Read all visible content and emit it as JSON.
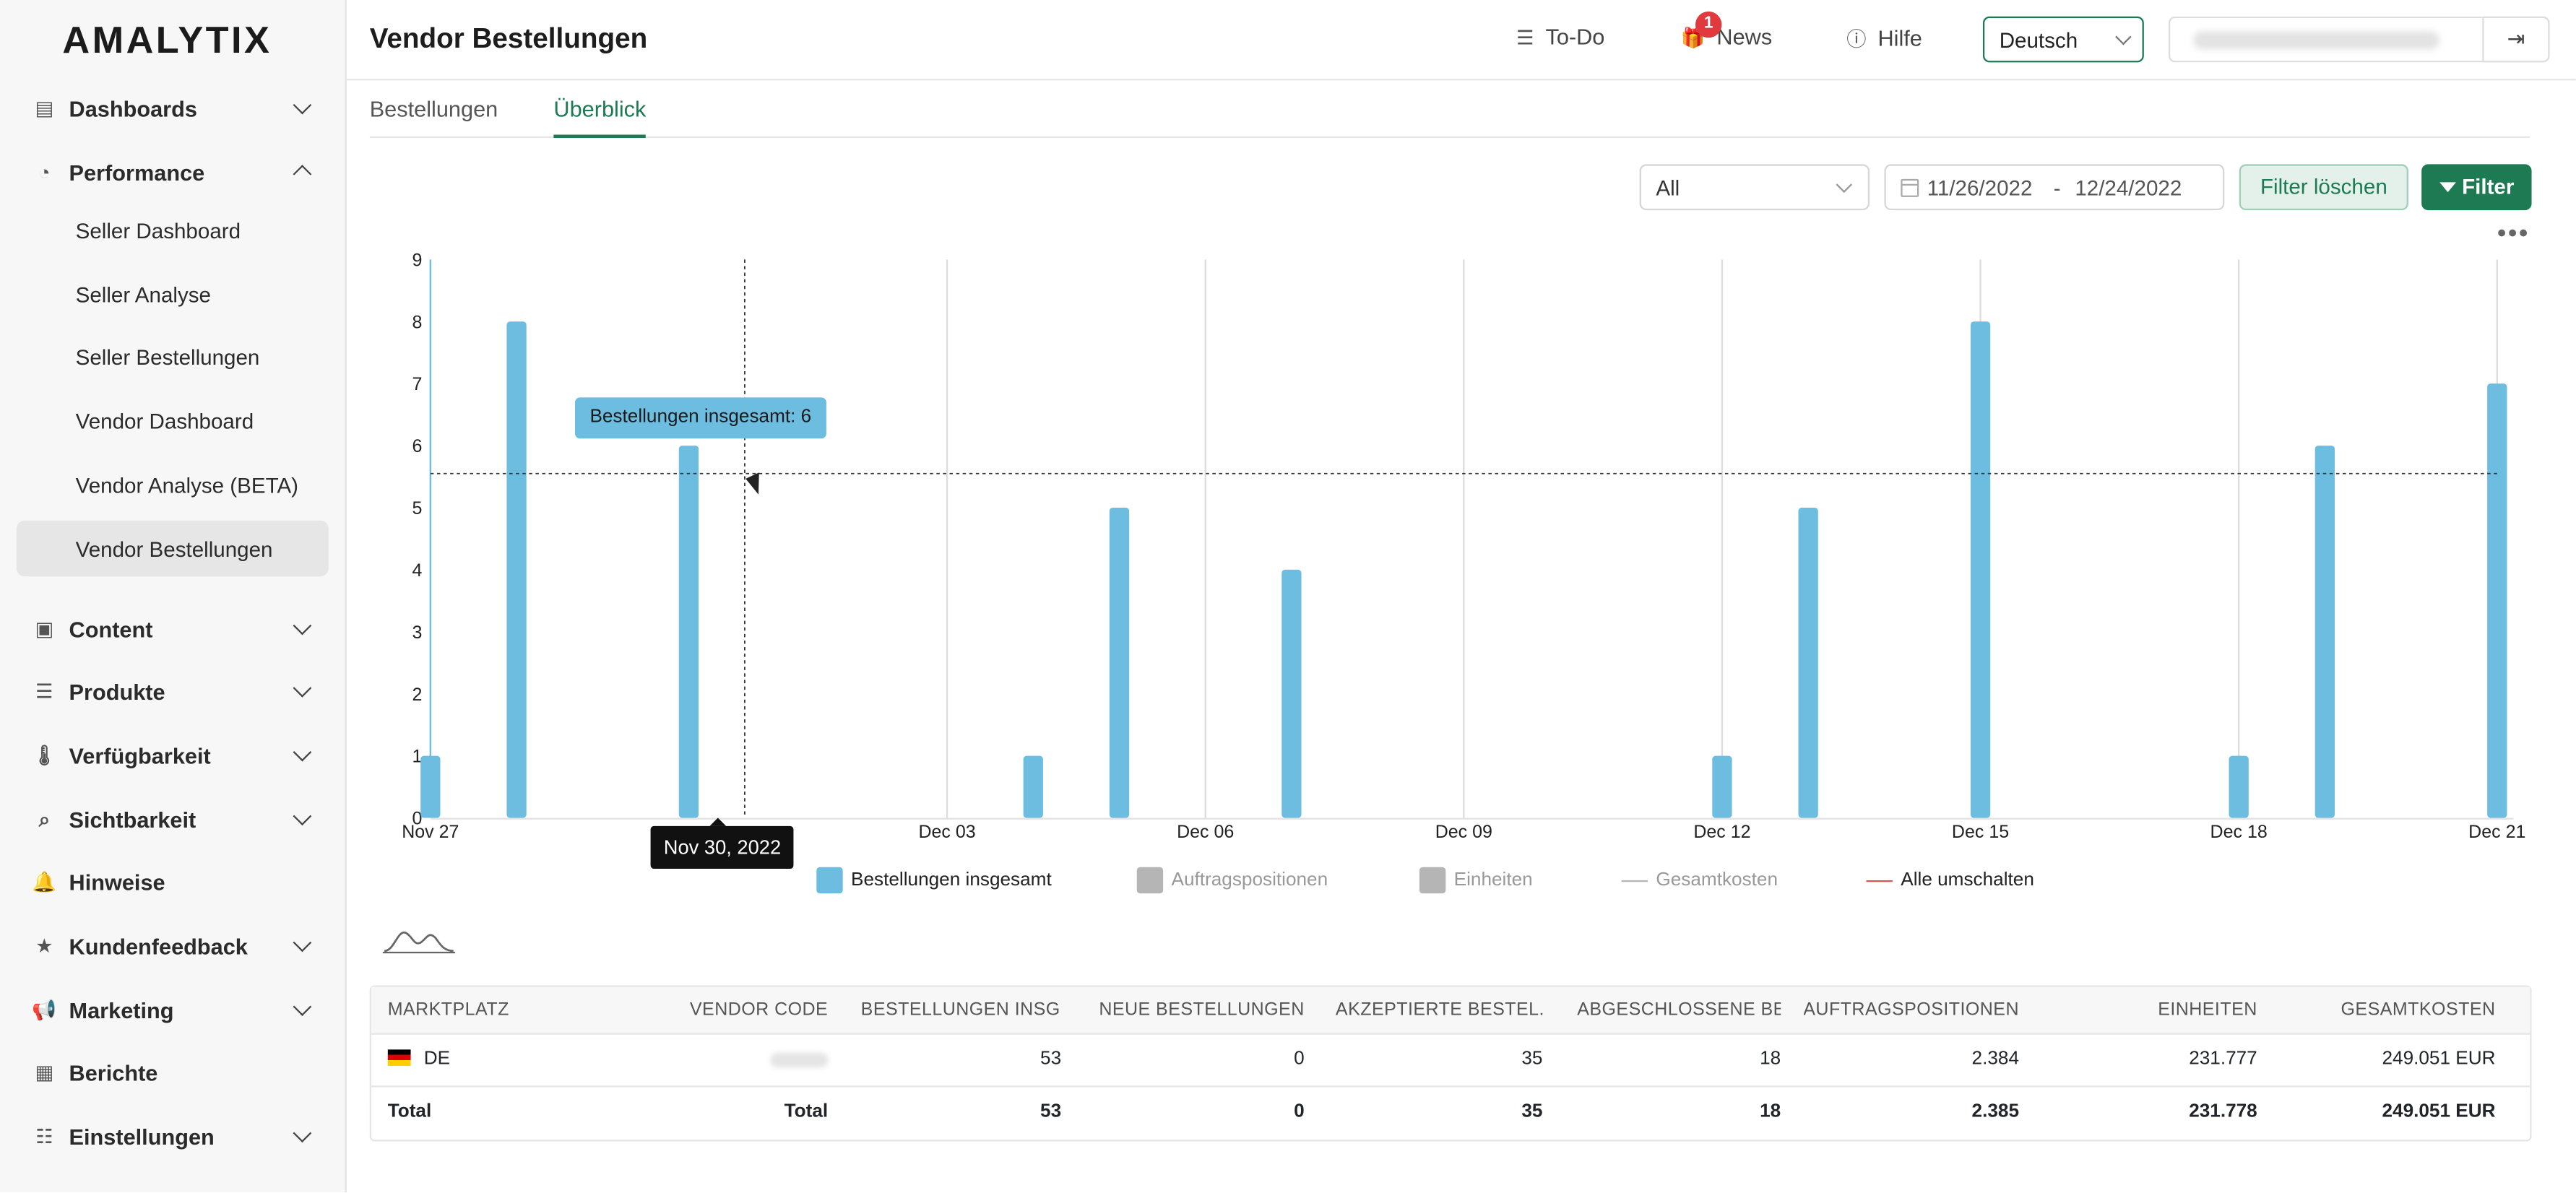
{
  "sidebar": {
    "logo": "AMALYTIX",
    "items": [
      {
        "label": "Dashboards",
        "icon": "dashboards-icon"
      },
      {
        "label": "Performance",
        "icon": "gauge-icon"
      },
      {
        "label": "Content",
        "icon": "content-icon"
      },
      {
        "label": "Produkte",
        "icon": "list-icon"
      },
      {
        "label": "Verfügbarkeit",
        "icon": "thermometer-icon"
      },
      {
        "label": "Sichtbarkeit",
        "icon": "search-icon"
      },
      {
        "label": "Hinweise",
        "icon": "bell-icon"
      },
      {
        "label": "Kundenfeedback",
        "icon": "star-icon"
      },
      {
        "label": "Marketing",
        "icon": "megaphone-icon"
      },
      {
        "label": "Berichte",
        "icon": "table-icon"
      },
      {
        "label": "Einstellungen",
        "icon": "sliders-icon"
      }
    ],
    "performance_sub": [
      "Seller Dashboard",
      "Seller Analyse",
      "Seller Bestellungen",
      "Vendor Dashboard",
      "Vendor Analyse (BETA)",
      "Vendor Bestellungen"
    ]
  },
  "header": {
    "title": "Vendor Bestellungen",
    "todo": "To-Do",
    "news": "News",
    "news_badge": "1",
    "help": "Hilfe",
    "language": "Deutsch"
  },
  "tabs": [
    "Bestellungen",
    "Überblick"
  ],
  "filters": {
    "select": "All",
    "date_from": "11/26/2022",
    "date_sep": "-",
    "date_to": "12/24/2022",
    "clear": "Filter löschen",
    "filter": "Filter"
  },
  "chart_data": {
    "type": "bar",
    "x": [
      "Nov 27",
      "Nov 28",
      "Nov 29",
      "Nov 30",
      "Dec 01",
      "Dec 02",
      "Dec 03",
      "Dec 04",
      "Dec 05",
      "Dec 06",
      "Dec 07",
      "Dec 08",
      "Dec 09",
      "Dec 10",
      "Dec 11",
      "Dec 12",
      "Dec 13",
      "Dec 14",
      "Dec 15",
      "Dec 16",
      "Dec 17",
      "Dec 18",
      "Dec 19",
      "Dec 20",
      "Dec 21"
    ],
    "x_tick_labels": [
      "Nov 27",
      "Dec 03",
      "Dec 06",
      "Dec 09",
      "Dec 12",
      "Dec 15",
      "Dec 18",
      "Dec 21"
    ],
    "series": [
      {
        "name": "Bestellungen insgesamt",
        "values": [
          1,
          8,
          0,
          6,
          0,
          0,
          0,
          1,
          5,
          0,
          4,
          0,
          0,
          0,
          0,
          1,
          5,
          0,
          8,
          0,
          0,
          1,
          6,
          0,
          7
        ],
        "color": "#6cbde0"
      }
    ],
    "ylim": [
      0,
      9
    ],
    "y_ticks": [
      0,
      1,
      2,
      3,
      4,
      5,
      6,
      7,
      8,
      9
    ],
    "legend": [
      {
        "label": "Bestellungen insgesamt",
        "kind": "square",
        "color": "#6cbde0",
        "active": true
      },
      {
        "label": "Auftragspositionen",
        "kind": "square",
        "color": "#b0b0b0",
        "active": false
      },
      {
        "label": "Einheiten",
        "kind": "square",
        "color": "#b0b0b0",
        "active": false
      },
      {
        "label": "Gesamtkosten",
        "kind": "line",
        "color": "#b0b0b0",
        "active": false
      },
      {
        "label": "Alle umschalten",
        "kind": "line",
        "color": "#d9534f",
        "active": true
      }
    ],
    "tooltip": "Bestellungen insgesamt: 6",
    "crosshair_label": "Nov 30, 2022",
    "crosshair_index": 3,
    "crosshair_y": 5.55
  },
  "table": {
    "headers": [
      "MARKTPLATZ",
      "VENDOR CODE",
      "BESTELLUNGEN INSG...",
      "NEUE BESTELLUNGEN",
      "AKZEPTIERTE BESTEL...",
      "ABGESCHLOSSENE BE...",
      "AUFTRAGSPOSITIONEN",
      "EINHEITEN",
      "GESAMTKOSTEN"
    ],
    "rows": [
      [
        "DE",
        "",
        "53",
        "0",
        "35",
        "18",
        "2.384",
        "231.777",
        "249.051 EUR"
      ],
      [
        "Total",
        "Total",
        "53",
        "0",
        "35",
        "18",
        "2.385",
        "231.778",
        "249.051 EUR"
      ]
    ]
  }
}
